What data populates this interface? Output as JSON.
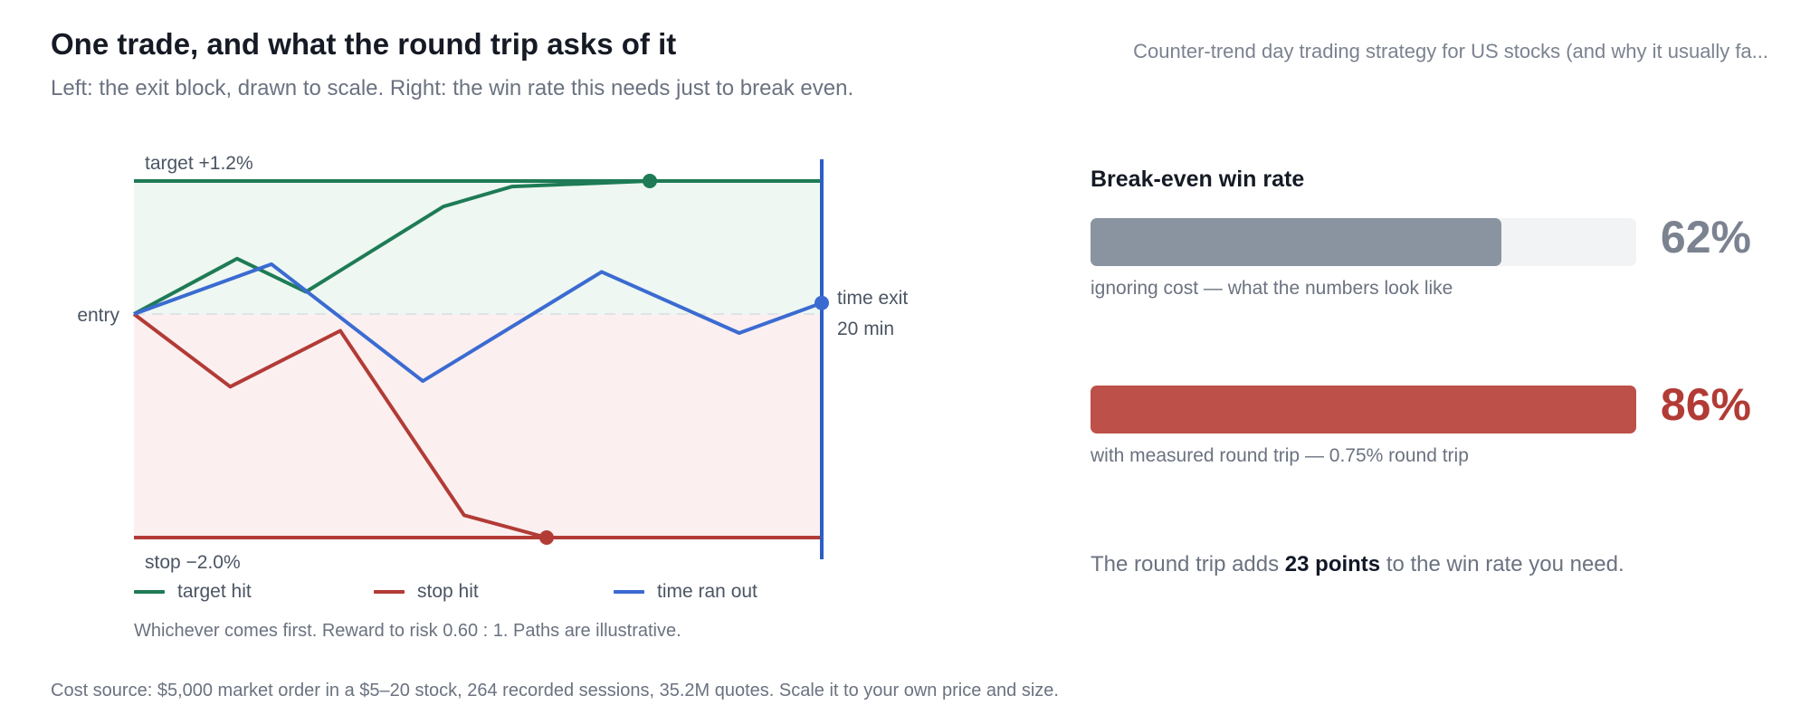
{
  "header": {
    "title": "One trade, and what the round trip asks of it",
    "subtitle": "Left: the exit block, drawn to scale. Right: the win rate this needs just to break even.",
    "context": "Counter-trend day trading strategy for US stocks (and why it usually fa..."
  },
  "chart_data": [
    {
      "type": "line",
      "title": "",
      "xlabel": "",
      "ylabel": "",
      "levels": {
        "target": {
          "label": "target +1.2%",
          "value": 1.2
        },
        "stop": {
          "label": "stop −2.0%",
          "value": -2.0
        },
        "entry": {
          "label": "entry",
          "value": 0
        },
        "time_exit": {
          "label_line1": "time exit",
          "label_line2": "20 min",
          "minutes": 20
        }
      },
      "x_range": [
        0,
        20
      ],
      "y_range": [
        -2.0,
        1.2
      ],
      "series": [
        {
          "name": "target hit",
          "color": "#1e7b55",
          "x": [
            0,
            3,
            5,
            9,
            11,
            15
          ],
          "y": [
            0,
            0.5,
            0.2,
            0.97,
            1.15,
            1.2
          ],
          "end_marker": true
        },
        {
          "name": "stop hit",
          "color": "#b23b36",
          "x": [
            0,
            2.8,
            6.0,
            9.6,
            12.0
          ],
          "y": [
            0,
            -0.65,
            -0.15,
            -1.8,
            -2.0
          ],
          "end_marker": true
        },
        {
          "name": "time ran out",
          "color": "#3b6bd1",
          "x": [
            0,
            4,
            8.4,
            13.6,
            17.6,
            20
          ],
          "y": [
            0,
            0.45,
            -0.6,
            0.38,
            -0.17,
            0.1
          ],
          "end_marker": true
        }
      ],
      "note": "Whichever comes first. Reward to risk 0.60 : 1. Paths are illustrative."
    },
    {
      "type": "bar",
      "title": "Break-even win rate",
      "xlim": [
        0,
        100
      ],
      "bars": [
        {
          "value": 62,
          "value_label": "62%",
          "caption": "ignoring cost — what the numbers look like",
          "color": "#8a94a1",
          "label_color": "#7b8290"
        },
        {
          "value": 86,
          "value_label": "86%",
          "caption": "with measured round trip — 0.75% round trip",
          "color": "#bd5049",
          "label_color": "#b23b36"
        }
      ]
    }
  ],
  "summary": {
    "prefix": "The round trip adds ",
    "highlight": "23 points",
    "suffix": " to the win rate you need."
  },
  "footer": {
    "source": "Cost source: $5,000 market order in a $5–20 stock, 264 recorded sessions, 35.2M quotes. Scale it to your own price and size."
  },
  "colors": {
    "target_zone": "#eef7f2",
    "stop_zone": "#fbeff0",
    "time_line": "#2c5fc4",
    "entry_line": "#e0e3e7"
  }
}
